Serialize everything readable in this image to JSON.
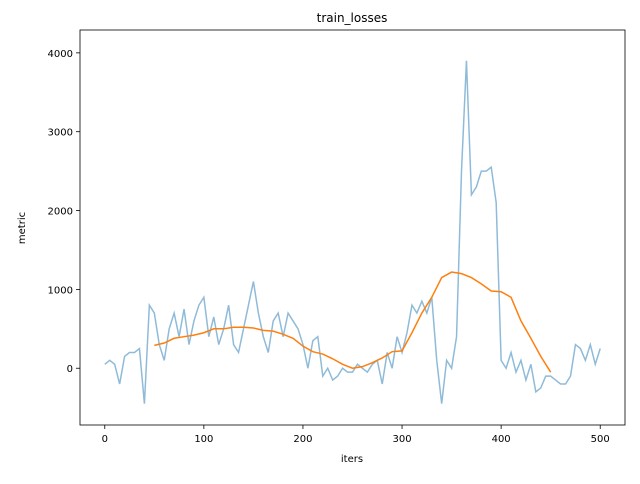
{
  "chart_data": {
    "type": "line",
    "title": "train_losses",
    "x_label": "iters",
    "y_label": "metric",
    "xlim": [
      -25,
      525
    ],
    "xticks": [
      0,
      100,
      200,
      300,
      400,
      500
    ],
    "ylim": [
      -720,
      4290
    ],
    "yticks": [
      0,
      1000,
      2000,
      3000,
      4000
    ],
    "series": [
      {
        "color": "#8fbbd9",
        "x": [
          0,
          5,
          10,
          15,
          20,
          25,
          30,
          35,
          40,
          45,
          50,
          55,
          60,
          65,
          70,
          75,
          80,
          85,
          90,
          95,
          100,
          105,
          110,
          115,
          120,
          125,
          130,
          135,
          140,
          145,
          150,
          155,
          160,
          165,
          170,
          175,
          180,
          185,
          190,
          195,
          200,
          205,
          210,
          215,
          220,
          225,
          230,
          235,
          240,
          245,
          250,
          255,
          260,
          265,
          270,
          275,
          280,
          285,
          290,
          295,
          300,
          305,
          310,
          315,
          320,
          325,
          330,
          335,
          340,
          345,
          350,
          355,
          360,
          365,
          370,
          375,
          380,
          385,
          390,
          395,
          400,
          405,
          410,
          415,
          420,
          425,
          430,
          435,
          440,
          445,
          450,
          455,
          460,
          465,
          470,
          475,
          480,
          485,
          490,
          495,
          500
        ],
        "values": [
          50,
          100,
          50,
          -200,
          150,
          200,
          200,
          250,
          -450,
          800,
          700,
          300,
          100,
          500,
          700,
          400,
          750,
          300,
          600,
          800,
          900,
          400,
          650,
          300,
          500,
          800,
          300,
          200,
          500,
          800,
          1100,
          700,
          400,
          200,
          600,
          700,
          400,
          700,
          600,
          500,
          300,
          0,
          350,
          400,
          -100,
          0,
          -150,
          -100,
          0,
          -50,
          -50,
          50,
          0,
          -50,
          50,
          100,
          -200,
          200,
          0,
          400,
          200,
          450,
          800,
          700,
          850,
          700,
          900,
          100,
          -450,
          100,
          0,
          400,
          2500,
          3900,
          2200,
          2300,
          2500,
          2500,
          2550,
          2100,
          100,
          0,
          200,
          -50,
          100,
          -150,
          50,
          -300,
          -250,
          -100,
          -100,
          -150,
          -200,
          -200,
          -100,
          300,
          250,
          100,
          300,
          50,
          250
        ]
      },
      {
        "color": "#ff7f0e",
        "x": [
          50,
          60,
          70,
          80,
          90,
          100,
          110,
          120,
          130,
          140,
          150,
          160,
          170,
          180,
          190,
          200,
          210,
          220,
          230,
          240,
          250,
          260,
          270,
          280,
          290,
          300,
          310,
          320,
          330,
          340,
          350,
          360,
          370,
          380,
          390,
          400,
          410,
          420,
          430,
          440,
          450
        ],
        "values": [
          290,
          320,
          380,
          400,
          420,
          450,
          500,
          500,
          520,
          520,
          510,
          480,
          470,
          430,
          380,
          280,
          210,
          180,
          120,
          50,
          0,
          20,
          70,
          130,
          210,
          220,
          450,
          700,
          900,
          1150,
          1220,
          1200,
          1150,
          1070,
          980,
          970,
          900,
          600,
          380,
          150,
          -50
        ]
      }
    ]
  }
}
